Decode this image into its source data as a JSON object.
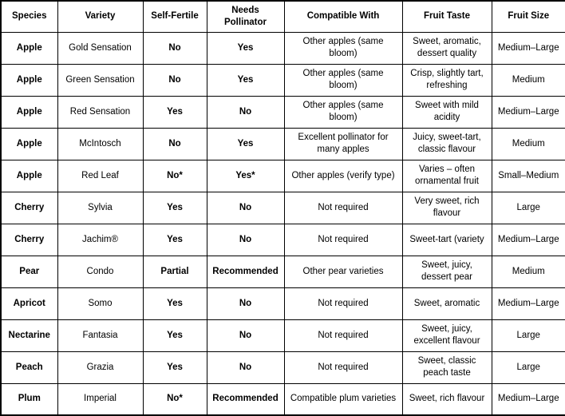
{
  "table": {
    "columns": [
      {
        "key": "species",
        "label": "Species"
      },
      {
        "key": "variety",
        "label": "Variety"
      },
      {
        "key": "self_fertile",
        "label": "Self-Fertile"
      },
      {
        "key": "needs_pollinator",
        "label": "Needs Pollinator"
      },
      {
        "key": "compatible_with",
        "label": "Compatible With"
      },
      {
        "key": "fruit_taste",
        "label": "Fruit Taste"
      },
      {
        "key": "fruit_size",
        "label": "Fruit Size"
      }
    ],
    "rows": [
      {
        "species": "Apple",
        "variety": "Gold Sensation",
        "self_fertile": "No",
        "needs_pollinator": "Yes",
        "compatible_with": "Other apples (same bloom)",
        "fruit_taste": "Sweet, aromatic, dessert quality",
        "fruit_size": "Medium–Large"
      },
      {
        "species": "Apple",
        "variety": "Green Sensation",
        "self_fertile": "No",
        "needs_pollinator": "Yes",
        "compatible_with": "Other apples (same bloom)",
        "fruit_taste": "Crisp, slightly tart, refreshing",
        "fruit_size": "Medium"
      },
      {
        "species": "Apple",
        "variety": "Red Sensation",
        "self_fertile": "Yes",
        "needs_pollinator": "No",
        "compatible_with": "Other apples (same bloom)",
        "fruit_taste": "Sweet with mild acidity",
        "fruit_size": "Medium–Large"
      },
      {
        "species": "Apple",
        "variety": "McIntosch",
        "self_fertile": "No",
        "needs_pollinator": "Yes",
        "compatible_with": "Excellent pollinator for many apples",
        "fruit_taste": "Juicy, sweet-tart, classic flavour",
        "fruit_size": "Medium"
      },
      {
        "species": "Apple",
        "variety": "Red Leaf",
        "self_fertile": "No*",
        "needs_pollinator": "Yes*",
        "compatible_with": "Other apples (verify type)",
        "fruit_taste": "Varies – often ornamental fruit",
        "fruit_size": "Small–Medium"
      },
      {
        "species": "Cherry",
        "variety": "Sylvia",
        "self_fertile": "Yes",
        "needs_pollinator": "No",
        "compatible_with": "Not required",
        "fruit_taste": "Very sweet, rich flavour",
        "fruit_size": "Large"
      },
      {
        "species": "Cherry",
        "variety": "Jachim®",
        "self_fertile": "Yes",
        "needs_pollinator": "No",
        "compatible_with": "Not required",
        "fruit_taste": "Sweet-tart (variety",
        "fruit_size": "Medium–Large"
      },
      {
        "species": "Pear",
        "variety": "Condo",
        "self_fertile": "Partial",
        "needs_pollinator": "Recommended",
        "compatible_with": "Other pear varieties",
        "fruit_taste": "Sweet, juicy, dessert pear",
        "fruit_size": "Medium"
      },
      {
        "species": "Apricot",
        "variety": "Somo",
        "self_fertile": "Yes",
        "needs_pollinator": "No",
        "compatible_with": "Not required",
        "fruit_taste": "Sweet, aromatic",
        "fruit_size": "Medium–Large"
      },
      {
        "species": "Nectarine",
        "variety": "Fantasia",
        "self_fertile": "Yes",
        "needs_pollinator": "No",
        "compatible_with": "Not required",
        "fruit_taste": "Sweet, juicy, excellent flavour",
        "fruit_size": "Large"
      },
      {
        "species": "Peach",
        "variety": "Grazia",
        "self_fertile": "Yes",
        "needs_pollinator": "No",
        "compatible_with": "Not required",
        "fruit_taste": "Sweet, classic peach taste",
        "fruit_size": "Large"
      },
      {
        "species": "Plum",
        "variety": "Imperial",
        "self_fertile": "No*",
        "needs_pollinator": "Recommended",
        "compatible_with": "Compatible plum varieties",
        "fruit_taste": "Sweet, rich flavour",
        "fruit_size": "Medium–Large"
      }
    ]
  },
  "colors": {
    "border": "#000000",
    "text": "#000000",
    "background": "#ffffff"
  }
}
